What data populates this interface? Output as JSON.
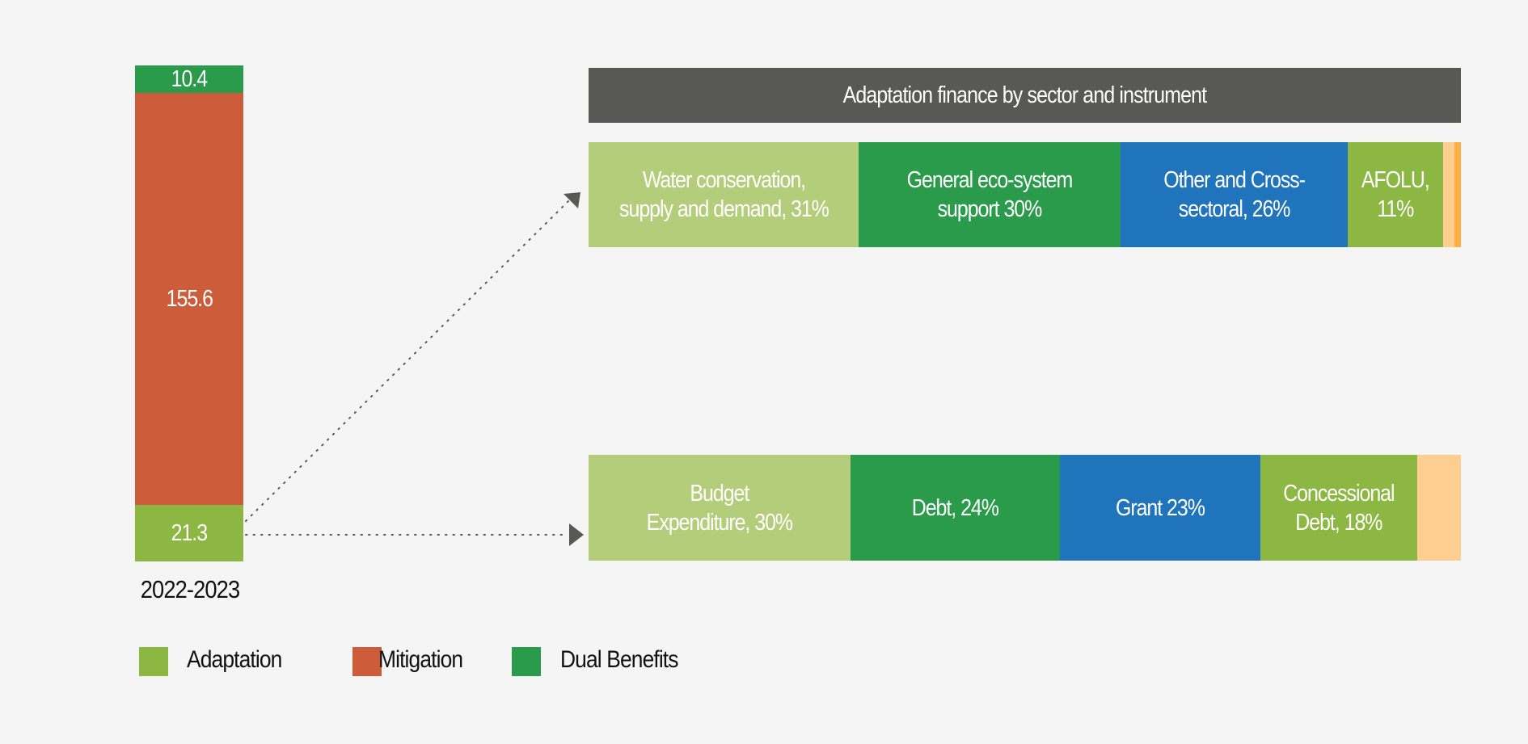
{
  "chart_data": [
    {
      "type": "bar",
      "stacked": true,
      "orientation": "vertical",
      "categories": [
        "2022-2023"
      ],
      "series": [
        {
          "name": "Adaptation",
          "values": [
            21.3
          ],
          "color": "#8cb742"
        },
        {
          "name": "Mitigation",
          "values": [
            155.6
          ],
          "color": "#cd5c3a"
        },
        {
          "name": "Dual Benefits",
          "values": [
            10.4
          ],
          "color": "#2a9a4b"
        }
      ],
      "legend": [
        "Adaptation",
        "Mitigation",
        "Dual Benefits"
      ],
      "legend_placement": "bottom-left"
    },
    {
      "type": "bar",
      "stacked": true,
      "orientation": "horizontal",
      "title": "Adaptation finance by sector and instrument",
      "rows": [
        {
          "name": "sector",
          "segments": [
            {
              "label": "Water conservation,\nsupply and demand, 31%",
              "value": 31,
              "color": "#b3cd7a"
            },
            {
              "label": "General eco-system\nsupport 30%",
              "value": 30,
              "color": "#2a9a4b"
            },
            {
              "label": "Other and Cross-\nsectoral, 26%",
              "value": 26,
              "color": "#1f74bc"
            },
            {
              "label": "AFOLU,\n11%",
              "value": 11,
              "color": "#8cb742"
            },
            {
              "label": "",
              "value": 1.3,
              "color": "#fdce8f"
            },
            {
              "label": "",
              "value": 0.7,
              "color": "#fdaf42"
            }
          ]
        },
        {
          "name": "instrument",
          "segments": [
            {
              "label": "Budget\nExpenditure, 30%",
              "value": 30,
              "color": "#b3cd7a"
            },
            {
              "label": "Debt, 24%",
              "value": 24,
              "color": "#2a9a4b"
            },
            {
              "label": "Grant 23%",
              "value": 23,
              "color": "#1f74bc"
            },
            {
              "label": "Concessional\nDebt, 18%",
              "value": 18,
              "color": "#8cb742"
            },
            {
              "label": "",
              "value": 5,
              "color": "#fdce8f"
            }
          ]
        }
      ]
    }
  ],
  "colors": {
    "background": "#f5f5f5",
    "header": "#585856",
    "arrow": "#585856"
  }
}
